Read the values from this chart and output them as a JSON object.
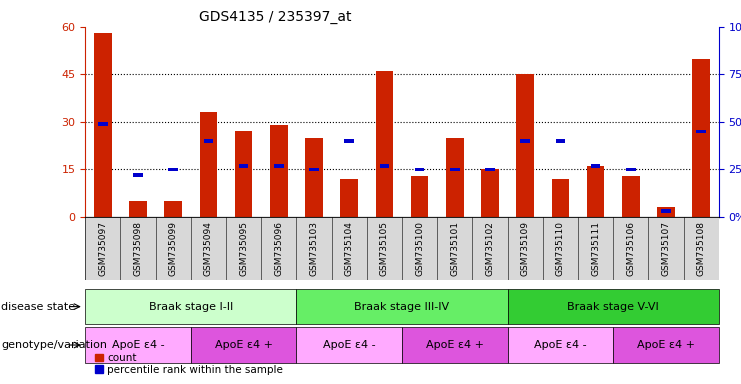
{
  "title": "GDS4135 / 235397_at",
  "samples": [
    "GSM735097",
    "GSM735098",
    "GSM735099",
    "GSM735094",
    "GSM735095",
    "GSM735096",
    "GSM735103",
    "GSM735104",
    "GSM735105",
    "GSM735100",
    "GSM735101",
    "GSM735102",
    "GSM735109",
    "GSM735110",
    "GSM735111",
    "GSM735106",
    "GSM735107",
    "GSM735108"
  ],
  "red_values": [
    58,
    5,
    5,
    33,
    27,
    29,
    25,
    12,
    46,
    13,
    25,
    15,
    45,
    12,
    16,
    13,
    3,
    50
  ],
  "blue_percentile": [
    49,
    22,
    25,
    40,
    27,
    27,
    25,
    40,
    27,
    25,
    25,
    25,
    40,
    40,
    27,
    25,
    3,
    45
  ],
  "ylim_left": [
    0,
    60
  ],
  "ylim_right": [
    0,
    100
  ],
  "yticks_left": [
    0,
    15,
    30,
    45,
    60
  ],
  "yticks_right": [
    0,
    25,
    50,
    75,
    100
  ],
  "disease_state_groups": [
    {
      "label": "Braak stage I-II",
      "start": 0,
      "end": 6,
      "color": "#ccffcc"
    },
    {
      "label": "Braak stage III-IV",
      "start": 6,
      "end": 12,
      "color": "#66ee66"
    },
    {
      "label": "Braak stage V-VI",
      "start": 12,
      "end": 18,
      "color": "#33cc33"
    }
  ],
  "genotype_groups": [
    {
      "label": "ApoE ε4 -",
      "start": 0,
      "end": 3,
      "color": "#ffaaff"
    },
    {
      "label": "ApoE ε4 +",
      "start": 3,
      "end": 6,
      "color": "#dd55dd"
    },
    {
      "label": "ApoE ε4 -",
      "start": 6,
      "end": 9,
      "color": "#ffaaff"
    },
    {
      "label": "ApoE ε4 +",
      "start": 9,
      "end": 12,
      "color": "#dd55dd"
    },
    {
      "label": "ApoE ε4 -",
      "start": 12,
      "end": 15,
      "color": "#ffaaff"
    },
    {
      "label": "ApoE ε4 +",
      "start": 15,
      "end": 18,
      "color": "#dd55dd"
    }
  ],
  "bar_color": "#cc2200",
  "square_color": "#0000cc",
  "left_axis_color": "#cc2200",
  "right_axis_color": "#0000cc",
  "tick_label_bg": "#d8d8d8",
  "legend_items": [
    "count",
    "percentile rank within the sample"
  ],
  "bar_width": 0.5,
  "ds_label": "disease state",
  "gv_label": "genotype/variation"
}
